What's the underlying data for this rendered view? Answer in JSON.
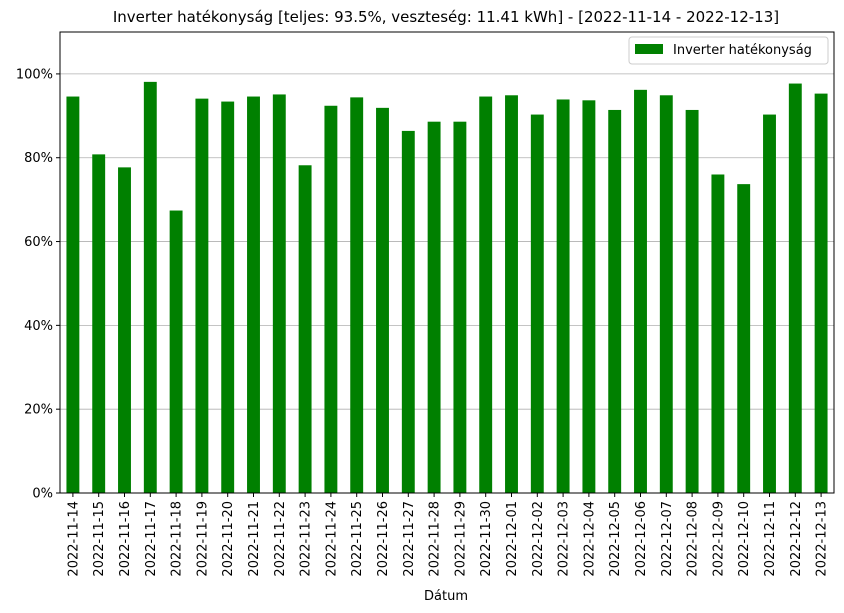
{
  "chart_data": {
    "type": "bar",
    "title": "Inverter hatékonyság [teljes: 93.5%, veszteség: 11.41 kWh]  -  [2022-11-14 - 2022-12-13]",
    "xlabel": "Dátum",
    "ylabel": "",
    "ylim": [
      0,
      110
    ],
    "yticks": [
      0,
      20,
      40,
      60,
      80,
      100
    ],
    "ytick_labels": [
      "0%",
      "20%",
      "40%",
      "60%",
      "80%",
      "100%"
    ],
    "grid": "y",
    "legend_position": "top-right",
    "bar_color": "#008000",
    "categories": [
      "2022-11-14",
      "2022-11-15",
      "2022-11-16",
      "2022-11-17",
      "2022-11-18",
      "2022-11-19",
      "2022-11-20",
      "2022-11-21",
      "2022-11-22",
      "2022-11-23",
      "2022-11-24",
      "2022-11-25",
      "2022-11-26",
      "2022-11-27",
      "2022-11-28",
      "2022-11-29",
      "2022-11-30",
      "2022-12-01",
      "2022-12-02",
      "2022-12-03",
      "2022-12-04",
      "2022-12-05",
      "2022-12-06",
      "2022-12-07",
      "2022-12-08",
      "2022-12-09",
      "2022-12-10",
      "2022-12-11",
      "2022-12-12",
      "2022-12-13"
    ],
    "series": [
      {
        "name": "Inverter hatékonyság",
        "values": [
          94.6,
          80.8,
          77.7,
          98.1,
          67.4,
          94.1,
          93.4,
          94.6,
          95.1,
          78.2,
          92.4,
          94.4,
          91.9,
          86.4,
          88.6,
          88.6,
          94.6,
          94.9,
          90.3,
          93.9,
          93.7,
          91.4,
          96.2,
          94.9,
          91.4,
          76.0,
          73.7,
          90.3,
          97.7,
          95.3
        ]
      }
    ]
  }
}
